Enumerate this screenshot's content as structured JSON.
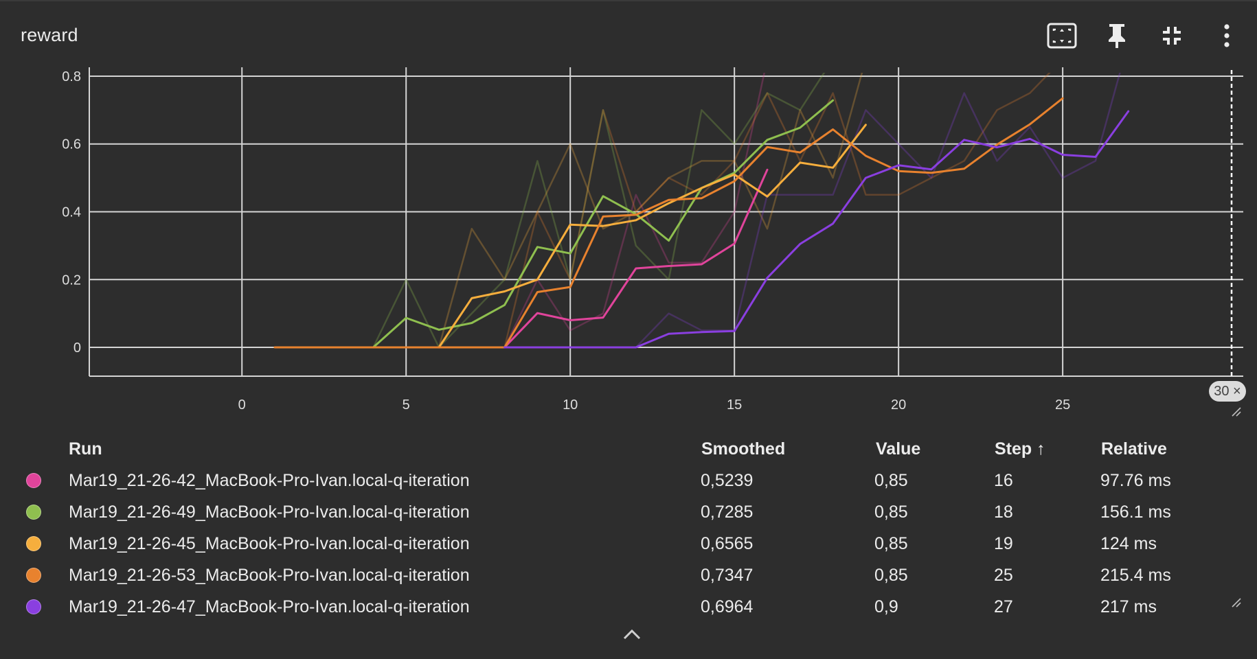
{
  "card": {
    "title": "reward"
  },
  "toolbar": {
    "buttons": [
      {
        "name": "fit-domain-button",
        "icon": "fit-to-screen-icon"
      },
      {
        "name": "pin-button",
        "icon": "pin-icon"
      },
      {
        "name": "collapse-card-button",
        "icon": "fullscreen-exit-icon"
      },
      {
        "name": "more-options-button",
        "icon": "more-vert-icon"
      }
    ]
  },
  "step_badge": "30 ×",
  "chart_data": {
    "type": "line",
    "title": "reward",
    "xlabel": "",
    "ylabel": "",
    "xlim": [
      -4.65,
      30.5
    ],
    "ylim": [
      -0.085,
      0.81
    ],
    "xticks": [
      0,
      5,
      10,
      15,
      20,
      25
    ],
    "yticks": [
      0,
      0.2,
      0.4,
      0.6,
      0.8
    ],
    "grid": true,
    "series": [
      {
        "name": "Mar19_21-26-42_MacBook-Pro-Ivan.local-q-iteration",
        "color": "#e0449b",
        "x": [
          8,
          9,
          10,
          11,
          12,
          13,
          14,
          15,
          16
        ],
        "smoothed": [
          0,
          0.101,
          0.08,
          0.088,
          0.233,
          0.24,
          0.245,
          0.306,
          0.5239
        ],
        "raw": [
          0,
          0.2,
          0.05,
          0.1,
          0.45,
          0.25,
          0.25,
          0.4,
          0.85
        ]
      },
      {
        "name": "Mar19_21-26-49_MacBook-Pro-Ivan.local-q-iteration",
        "color": "#8fbf4f",
        "x": [
          4,
          5,
          6,
          7,
          8,
          9,
          10,
          11,
          12,
          13,
          14,
          15,
          16,
          17,
          18
        ],
        "smoothed": [
          0,
          0.087,
          0.052,
          0.072,
          0.125,
          0.296,
          0.277,
          0.446,
          0.393,
          0.315,
          0.47,
          0.515,
          0.612,
          0.648,
          0.7285
        ],
        "raw": [
          0,
          0.2,
          0,
          0.1,
          0.2,
          0.55,
          0.2,
          0.7,
          0.3,
          0.2,
          0.7,
          0.6,
          0.75,
          0.7,
          0.85
        ]
      },
      {
        "name": "Mar19_21-26-45_MacBook-Pro-Ivan.local-q-iteration",
        "color": "#f6ae3d",
        "x": [
          6,
          7,
          8,
          9,
          10,
          11,
          12,
          13,
          14,
          15,
          16,
          17,
          18,
          19
        ],
        "smoothed": [
          0,
          0.145,
          0.165,
          0.2,
          0.362,
          0.358,
          0.375,
          0.425,
          0.47,
          0.51,
          0.445,
          0.545,
          0.53,
          0.6565
        ],
        "raw": [
          0,
          0.35,
          0.2,
          0.4,
          0.6,
          0.35,
          0.4,
          0.5,
          0.55,
          0.55,
          0.35,
          0.7,
          0.5,
          0.85
        ]
      },
      {
        "name": "Mar19_21-26-53_MacBook-Pro-Ivan.local-q-iteration",
        "color": "#e8822e",
        "x": [
          1,
          2,
          3,
          4,
          5,
          6,
          7,
          8,
          9,
          10,
          11,
          12,
          13,
          14,
          15,
          16,
          17,
          18,
          19,
          20,
          21,
          22,
          23,
          24,
          25
        ],
        "smoothed": [
          0,
          0,
          0,
          0,
          0,
          0,
          0,
          0,
          0.163,
          0.178,
          0.386,
          0.391,
          0.435,
          0.44,
          0.49,
          0.591,
          0.575,
          0.643,
          0.565,
          0.52,
          0.515,
          0.527,
          0.598,
          0.658,
          0.7347
        ],
        "raw": [
          0,
          0,
          0,
          0,
          0,
          0,
          0,
          0,
          0.4,
          0.2,
          0.7,
          0.4,
          0.5,
          0.45,
          0.55,
          0.75,
          0.55,
          0.75,
          0.45,
          0.45,
          0.5,
          0.55,
          0.7,
          0.75,
          0.85
        ]
      },
      {
        "name": "Mar19_21-26-47_MacBook-Pro-Ivan.local-q-iteration",
        "color": "#8a3fe0",
        "x": [
          8,
          9,
          10,
          11,
          12,
          13,
          14,
          15,
          16,
          17,
          18,
          19,
          20,
          21,
          22,
          23,
          24,
          25,
          26,
          27
        ],
        "smoothed": [
          0,
          0,
          0,
          0,
          0,
          0.04,
          0.045,
          0.048,
          0.205,
          0.305,
          0.365,
          0.5,
          0.537,
          0.525,
          0.612,
          0.59,
          0.615,
          0.568,
          0.562,
          0.6964
        ],
        "raw": [
          0,
          0,
          0,
          0,
          0,
          0.1,
          0.05,
          0.05,
          0.45,
          0.45,
          0.45,
          0.7,
          0.6,
          0.5,
          0.75,
          0.55,
          0.65,
          0.5,
          0.55,
          0.9
        ]
      }
    ]
  },
  "legend": {
    "headers": {
      "run": "Run",
      "smoothed": "Smoothed",
      "value": "Value",
      "step": "Step",
      "relative": "Relative"
    },
    "rows": [
      {
        "run": "Mar19_21-26-42_MacBook-Pro-Ivan.local-q-iteration",
        "smoothed": "0,5239",
        "value": "0,85",
        "step": "16",
        "relative": "97.76 ms",
        "color": "#e0449b"
      },
      {
        "run": "Mar19_21-26-49_MacBook-Pro-Ivan.local-q-iteration",
        "smoothed": "0,7285",
        "value": "0,85",
        "step": "18",
        "relative": "156.1 ms",
        "color": "#8fbf4f"
      },
      {
        "run": "Mar19_21-26-45_MacBook-Pro-Ivan.local-q-iteration",
        "smoothed": "0,6565",
        "value": "0,85",
        "step": "19",
        "relative": "124 ms",
        "color": "#f6ae3d"
      },
      {
        "run": "Mar19_21-26-53_MacBook-Pro-Ivan.local-q-iteration",
        "smoothed": "0,7347",
        "value": "0,85",
        "step": "25",
        "relative": "215.4 ms",
        "color": "#e8822e"
      },
      {
        "run": "Mar19_21-26-47_MacBook-Pro-Ivan.local-q-iteration",
        "smoothed": "0,6964",
        "value": "0,9",
        "step": "27",
        "relative": "217 ms",
        "color": "#8a3fe0"
      }
    ]
  }
}
